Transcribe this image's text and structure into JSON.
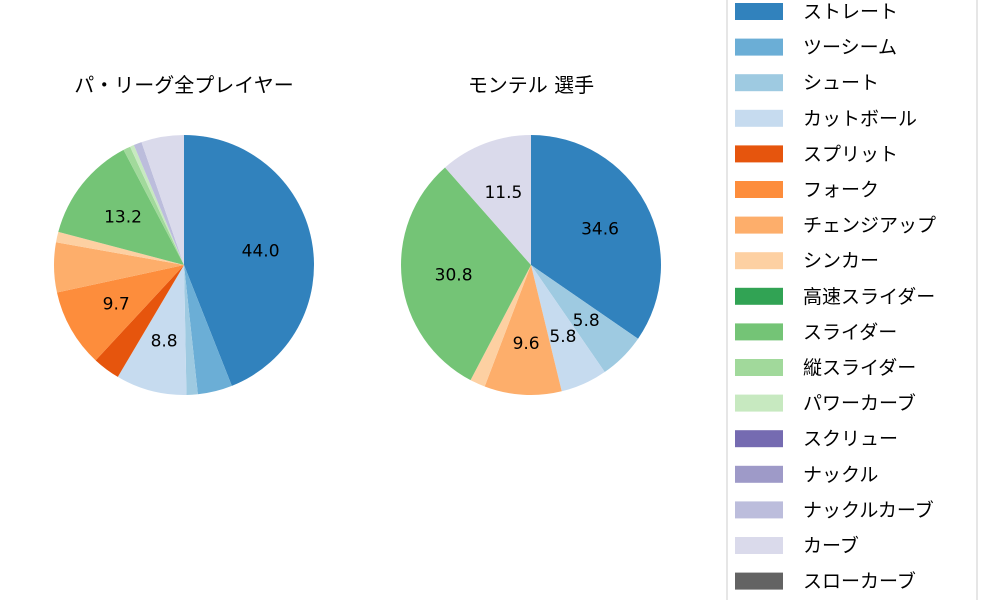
{
  "chart_data": [
    {
      "type": "pie",
      "title": "パ・リーグ全プレイヤー",
      "slices": [
        {
          "name": "ストレート",
          "value": 44.0,
          "label": "44.0"
        },
        {
          "name": "ツーシーム",
          "value": 4.3,
          "label": ""
        },
        {
          "name": "シュート",
          "value": 1.4,
          "label": ""
        },
        {
          "name": "カットボール",
          "value": 8.8,
          "label": "8.8"
        },
        {
          "name": "スプリット",
          "value": 3.4,
          "label": ""
        },
        {
          "name": "フォーク",
          "value": 9.7,
          "label": "9.7"
        },
        {
          "name": "チェンジアップ",
          "value": 6.2,
          "label": ""
        },
        {
          "name": "シンカー",
          "value": 1.3,
          "label": ""
        },
        {
          "name": "高速スライダー",
          "value": 0.0,
          "label": ""
        },
        {
          "name": "スライダー",
          "value": 13.2,
          "label": "13.2"
        },
        {
          "name": "縦スライダー",
          "value": 0.9,
          "label": ""
        },
        {
          "name": "パワーカーブ",
          "value": 0.5,
          "label": ""
        },
        {
          "name": "スクリュー",
          "value": 0.0,
          "label": ""
        },
        {
          "name": "ナックル",
          "value": 0.0,
          "label": ""
        },
        {
          "name": "ナックルカーブ",
          "value": 1.0,
          "label": ""
        },
        {
          "name": "カーブ",
          "value": 5.3,
          "label": ""
        },
        {
          "name": "スローカーブ",
          "value": 0.0,
          "label": ""
        }
      ]
    },
    {
      "type": "pie",
      "title": "モンテル  選手",
      "slices": [
        {
          "name": "ストレート",
          "value": 34.6,
          "label": "34.6"
        },
        {
          "name": "ツーシーム",
          "value": 0.0,
          "label": ""
        },
        {
          "name": "シュート",
          "value": 5.8,
          "label": "5.8"
        },
        {
          "name": "カットボール",
          "value": 5.8,
          "label": "5.8"
        },
        {
          "name": "スプリット",
          "value": 0.0,
          "label": ""
        },
        {
          "name": "フォーク",
          "value": 0.0,
          "label": ""
        },
        {
          "name": "チェンジアップ",
          "value": 9.6,
          "label": "9.6"
        },
        {
          "name": "シンカー",
          "value": 1.9,
          "label": ""
        },
        {
          "name": "高速スライダー",
          "value": 0.0,
          "label": ""
        },
        {
          "name": "スライダー",
          "value": 30.8,
          "label": "30.8"
        },
        {
          "name": "縦スライダー",
          "value": 0.0,
          "label": ""
        },
        {
          "name": "パワーカーブ",
          "value": 0.0,
          "label": ""
        },
        {
          "name": "スクリュー",
          "value": 0.0,
          "label": ""
        },
        {
          "name": "ナックル",
          "value": 0.0,
          "label": ""
        },
        {
          "name": "ナックルカーブ",
          "value": 0.0,
          "label": ""
        },
        {
          "name": "カーブ",
          "value": 11.5,
          "label": "11.5"
        },
        {
          "name": "スローカーブ",
          "value": 0.0,
          "label": ""
        }
      ]
    }
  ],
  "legend": {
    "placement": "right",
    "items": [
      {
        "name": "ストレート",
        "color": "#3182bd"
      },
      {
        "name": "ツーシーム",
        "color": "#6baed6"
      },
      {
        "name": "シュート",
        "color": "#9ecae1"
      },
      {
        "name": "カットボール",
        "color": "#c6dbef"
      },
      {
        "name": "スプリット",
        "color": "#e6550d"
      },
      {
        "name": "フォーク",
        "color": "#fd8d3c"
      },
      {
        "name": "チェンジアップ",
        "color": "#fdae6b"
      },
      {
        "name": "シンカー",
        "color": "#fdd0a2"
      },
      {
        "name": "高速スライダー",
        "color": "#31a354"
      },
      {
        "name": "スライダー",
        "color": "#74c476"
      },
      {
        "name": "縦スライダー",
        "color": "#a1d99b"
      },
      {
        "name": "パワーカーブ",
        "color": "#c7e9c0"
      },
      {
        "name": "スクリュー",
        "color": "#756bb1"
      },
      {
        "name": "ナックル",
        "color": "#9e9ac8"
      },
      {
        "name": "ナックルカーブ",
        "color": "#bcbddc"
      },
      {
        "name": "カーブ",
        "color": "#dadaeb"
      },
      {
        "name": "スローカーブ",
        "color": "#636363"
      }
    ]
  }
}
